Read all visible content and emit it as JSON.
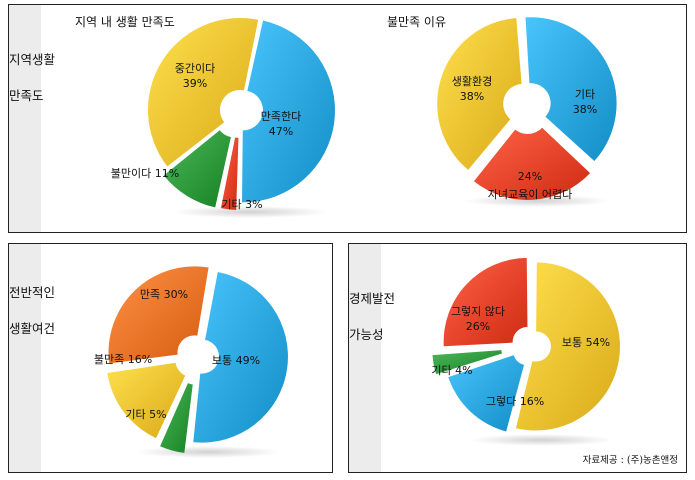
{
  "panels": {
    "local_satisfaction": {
      "side_label": "지역생활\n\n만족도"
    },
    "overall": {
      "side_label": "전반적인\n\n생활여건"
    },
    "economic": {
      "side_label": "경제발전\n\n가능성"
    }
  },
  "source": "자료제공 : (주)농촌앤정",
  "colors": {
    "yellow": "#f2c230",
    "blue": "#2ba6de",
    "green": "#2e9a3c",
    "red": "#e8442a",
    "orange": "#ee7428"
  },
  "chart_data": [
    {
      "id": "local_satisfaction",
      "type": "pie",
      "title": "지역 내 생활 만족도",
      "unit": "%",
      "slices": [
        {
          "label": "만족한다",
          "value": 47,
          "color": "blue"
        },
        {
          "label": "기타",
          "value": 3,
          "color": "red"
        },
        {
          "label": "불만이다",
          "value": 11,
          "color": "green"
        },
        {
          "label": "중간이다",
          "value": 39,
          "color": "yellow"
        }
      ]
    },
    {
      "id": "dissatisfaction_reason",
      "type": "pie",
      "title": "불만족 이유",
      "unit": "%",
      "slices": [
        {
          "label": "기타",
          "value": 38,
          "color": "blue"
        },
        {
          "label": "자녀교육이 어렵다",
          "value": 24,
          "color": "red"
        },
        {
          "label": "생활환경",
          "value": 38,
          "color": "yellow"
        }
      ]
    },
    {
      "id": "overall_conditions",
      "type": "pie",
      "title": "",
      "unit": "%",
      "slices": [
        {
          "label": "보통",
          "value": 49,
          "color": "blue"
        },
        {
          "label": "기타",
          "value": 5,
          "color": "green"
        },
        {
          "label": "불만족",
          "value": 16,
          "color": "yellow"
        },
        {
          "label": "만족",
          "value": 30,
          "color": "orange"
        }
      ]
    },
    {
      "id": "economic_potential",
      "type": "pie",
      "title": "",
      "unit": "%",
      "slices": [
        {
          "label": "보통",
          "value": 54,
          "color": "yellow"
        },
        {
          "label": "그렇다",
          "value": 16,
          "color": "blue"
        },
        {
          "label": "기타",
          "value": 4,
          "color": "green"
        },
        {
          "label": "그렇지 않다",
          "value": 26,
          "color": "red"
        }
      ]
    }
  ]
}
